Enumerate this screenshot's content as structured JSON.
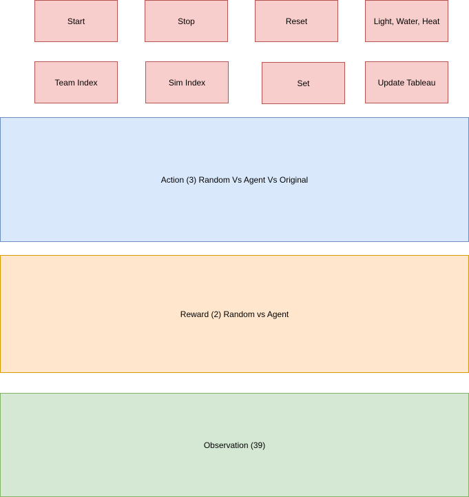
{
  "buttons": {
    "start": "Start",
    "stop": "Stop",
    "reset": "Reset",
    "light_water_heat": "Light, Water, Heat",
    "team_index": "Team Index",
    "sim_index": "Sim Index",
    "set": "Set",
    "update_tableau": "Update Tableau"
  },
  "panels": {
    "action": "Action (3) Random Vs Agent Vs Original",
    "reward": "Reward (2) Random vs Agent",
    "observation": "Observation (39)"
  },
  "colors": {
    "button_fill": "#f8cecc",
    "button_border": "#b85450",
    "action_fill": "#dae8fc",
    "action_border": "#6c8ebf",
    "reward_fill": "#ffe6cc",
    "reward_border": "#d79b00",
    "observation_fill": "#d5e8d4",
    "observation_border": "#82b366"
  }
}
